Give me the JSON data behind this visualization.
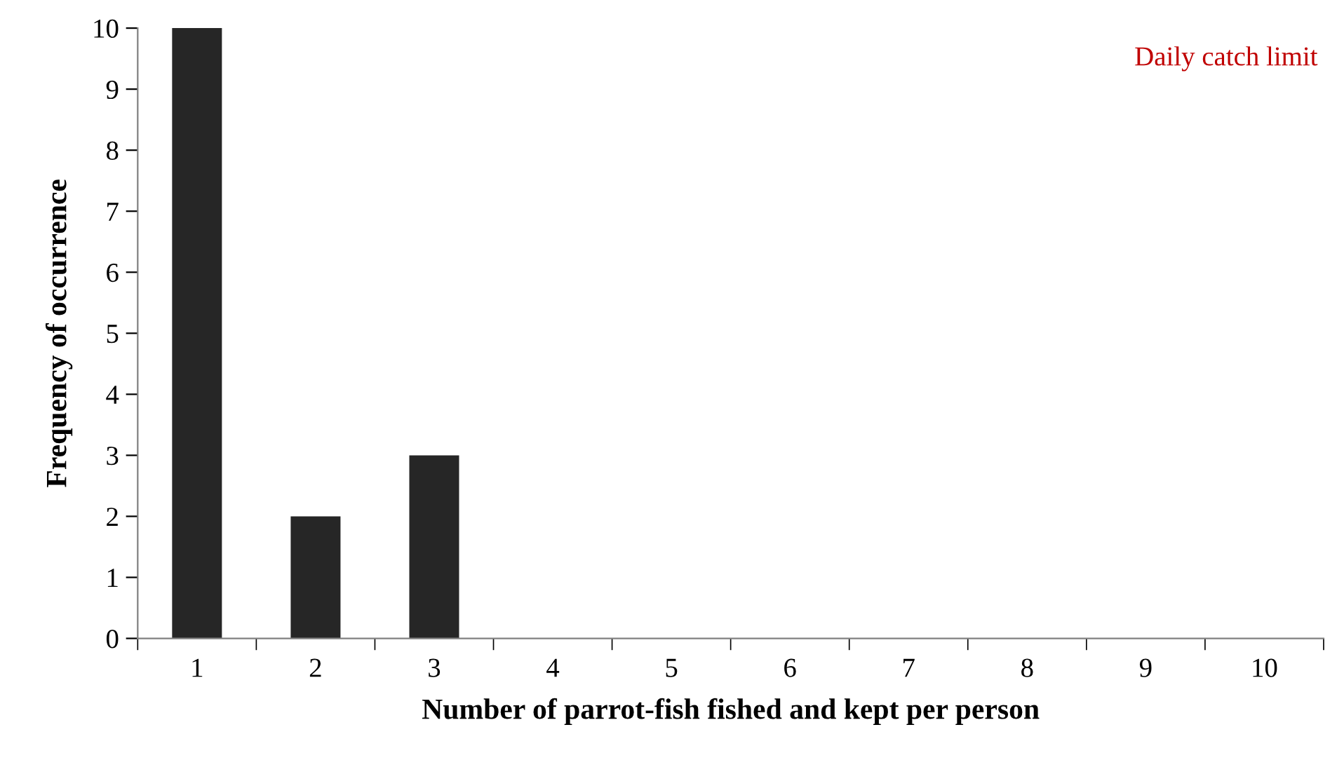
{
  "chart_data": {
    "type": "bar",
    "xlabel": "Number of parrot-fish fished and kept per person",
    "ylabel": "Frequency of occurrence",
    "categories": [
      "1",
      "2",
      "3",
      "4",
      "5",
      "6",
      "7",
      "8",
      "9",
      "10"
    ],
    "values": [
      10,
      2,
      3,
      0,
      0,
      0,
      0,
      0,
      0,
      0
    ],
    "color": "#262626",
    "ylim": [
      0,
      10
    ],
    "yticks": [
      0,
      1,
      2,
      3,
      4,
      5,
      6,
      7,
      8,
      9,
      10
    ],
    "grid": false,
    "legend": false,
    "annotations": [
      "Daily catch limit"
    ]
  }
}
